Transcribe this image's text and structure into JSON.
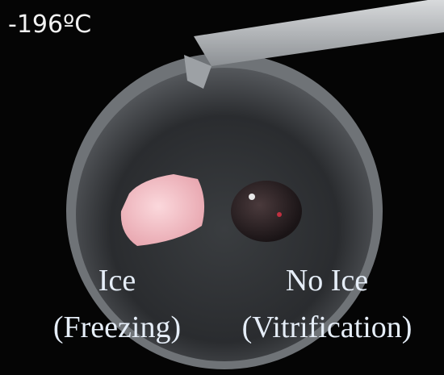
{
  "temperature_label": "-196ºC",
  "labels": [
    {
      "line1": "Ice",
      "line2": "(Freezing)"
    },
    {
      "line1": "No Ice",
      "line2": "(Vitrification)"
    }
  ]
}
